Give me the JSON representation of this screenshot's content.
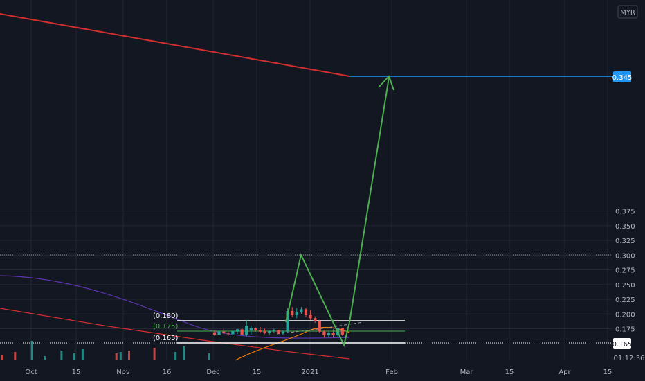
{
  "chart_data": {
    "type": "candlestick",
    "currency": "MYR",
    "y_axis": {
      "min": 0.155,
      "max": 0.39,
      "ticks": [
        "0.375",
        "0.350",
        "0.325",
        "0.300",
        "0.275",
        "0.250",
        "0.225",
        "0.200",
        "0.175"
      ]
    },
    "x_axis": {
      "ticks": [
        "Oct",
        "15",
        "Nov",
        "16",
        "Dec",
        "15",
        "2021",
        "Feb",
        "Mar",
        "15",
        "Apr",
        "15"
      ]
    },
    "last_price": "0.165",
    "countdown": "01:12:36",
    "target_price": "0.345",
    "levels": [
      "(0.180)",
      "(0.175)",
      "(0.165)"
    ],
    "candles": [
      {
        "o": 0.169,
        "h": 0.172,
        "l": 0.163,
        "c": 0.165
      },
      {
        "o": 0.165,
        "h": 0.172,
        "l": 0.164,
        "c": 0.17
      },
      {
        "o": 0.17,
        "h": 0.175,
        "l": 0.166,
        "c": 0.168
      },
      {
        "o": 0.167,
        "h": 0.17,
        "l": 0.163,
        "c": 0.166
      },
      {
        "o": 0.166,
        "h": 0.172,
        "l": 0.164,
        "c": 0.171
      },
      {
        "o": 0.17,
        "h": 0.175,
        "l": 0.166,
        "c": 0.174
      },
      {
        "o": 0.174,
        "h": 0.18,
        "l": 0.165,
        "c": 0.165
      },
      {
        "o": 0.165,
        "h": 0.19,
        "l": 0.162,
        "c": 0.18
      },
      {
        "o": 0.172,
        "h": 0.18,
        "l": 0.165,
        "c": 0.176
      },
      {
        "o": 0.176,
        "h": 0.177,
        "l": 0.17,
        "c": 0.172
      },
      {
        "o": 0.172,
        "h": 0.178,
        "l": 0.168,
        "c": 0.17
      },
      {
        "o": 0.17,
        "h": 0.175,
        "l": 0.166,
        "c": 0.168
      },
      {
        "o": 0.168,
        "h": 0.172,
        "l": 0.165,
        "c": 0.171
      },
      {
        "o": 0.171,
        "h": 0.175,
        "l": 0.168,
        "c": 0.173
      },
      {
        "o": 0.173,
        "h": 0.173,
        "l": 0.166,
        "c": 0.167
      },
      {
        "o": 0.167,
        "h": 0.172,
        "l": 0.165,
        "c": 0.17
      },
      {
        "o": 0.17,
        "h": 0.21,
        "l": 0.169,
        "c": 0.205
      },
      {
        "o": 0.205,
        "h": 0.212,
        "l": 0.195,
        "c": 0.198
      },
      {
        "o": 0.198,
        "h": 0.21,
        "l": 0.193,
        "c": 0.203
      },
      {
        "o": 0.203,
        "h": 0.212,
        "l": 0.2,
        "c": 0.208
      },
      {
        "o": 0.208,
        "h": 0.21,
        "l": 0.195,
        "c": 0.198
      },
      {
        "o": 0.198,
        "h": 0.206,
        "l": 0.19,
        "c": 0.193
      },
      {
        "o": 0.193,
        "h": 0.196,
        "l": 0.185,
        "c": 0.188
      },
      {
        "o": 0.188,
        "h": 0.19,
        "l": 0.168,
        "c": 0.17
      },
      {
        "o": 0.17,
        "h": 0.172,
        "l": 0.16,
        "c": 0.164
      },
      {
        "o": 0.164,
        "h": 0.17,
        "l": 0.16,
        "c": 0.168
      },
      {
        "o": 0.168,
        "h": 0.174,
        "l": 0.16,
        "c": 0.164
      },
      {
        "o": 0.164,
        "h": 0.176,
        "l": 0.161,
        "c": 0.176
      },
      {
        "o": 0.176,
        "h": 0.176,
        "l": 0.163,
        "c": 0.165
      }
    ],
    "colors": {
      "background": "#131722",
      "up": "#26a69a",
      "down": "#ef5350",
      "long_ma": "#d32f2f",
      "mid_ma": "#5e35b1",
      "short_ma": "#f57c00",
      "projection": "#4caf50",
      "target": "#2196f3",
      "grid": "#232733",
      "level": "#ffffff"
    }
  }
}
